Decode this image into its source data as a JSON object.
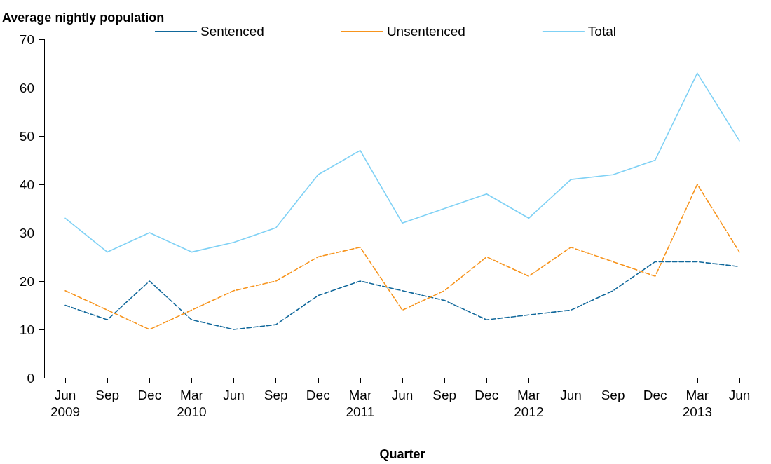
{
  "chart_data": {
    "type": "line",
    "ylabel": "Average nightly population",
    "xlabel": "Quarter",
    "categories": [
      "Jun\n2009",
      "Sep",
      "Dec",
      "Mar\n2010",
      "Jun",
      "Sep",
      "Dec",
      "Mar\n2011",
      "Jun",
      "Sep",
      "Dec",
      "Mar\n2012",
      "Jun",
      "Sep",
      "Dec",
      "Mar\n2013",
      "Jun"
    ],
    "series": [
      {
        "name": "Sentenced",
        "color": "#11689b",
        "line_style": "dashed",
        "values": [
          15,
          12,
          20,
          12,
          10,
          11,
          17,
          20,
          18,
          16,
          12,
          13,
          14,
          18,
          24,
          24,
          23
        ]
      },
      {
        "name": "Unsentenced",
        "color": "#f7941d",
        "line_style": "dashed",
        "values": [
          18,
          14,
          10,
          14,
          18,
          20,
          25,
          27,
          14,
          18,
          25,
          21,
          27,
          24,
          21,
          40,
          26
        ]
      },
      {
        "name": "Total",
        "color": "#7fd1f5",
        "line_style": "solid",
        "values": [
          33,
          26,
          30,
          26,
          28,
          31,
          42,
          47,
          32,
          35,
          38,
          33,
          41,
          42,
          45,
          63,
          49
        ]
      }
    ],
    "ylim": [
      0,
      70
    ],
    "yticks": [
      0,
      10,
      20,
      30,
      40,
      50,
      60,
      70
    ],
    "grid": false,
    "legend": "top",
    "marker": "none"
  }
}
